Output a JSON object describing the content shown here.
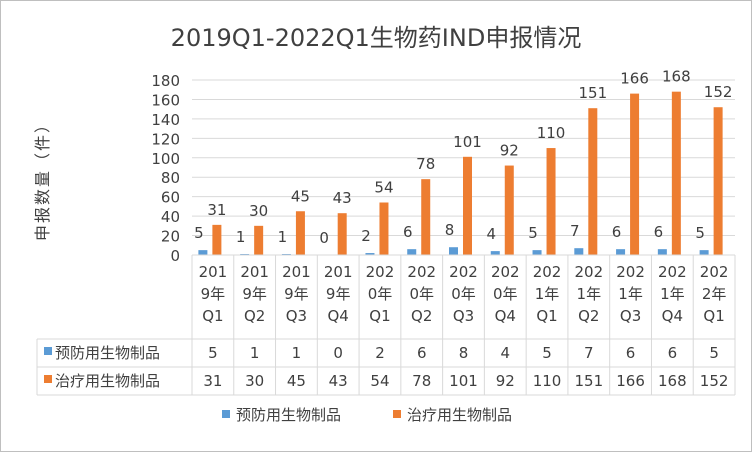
{
  "chart_data": {
    "type": "bar",
    "title": "2019Q1-2022Q1生物药IND申报情况",
    "xlabel": "",
    "ylabel": "申报数量（件）",
    "ylim": [
      0,
      180
    ],
    "yticks": [
      "0",
      "20",
      "40",
      "60",
      "80",
      "100",
      "120",
      "140",
      "160",
      "180"
    ],
    "grid": true,
    "legend_position": "bottom",
    "data_table": true,
    "categories": [
      [
        "201",
        "9年",
        "Q1"
      ],
      [
        "201",
        "9年",
        "Q2"
      ],
      [
        "201",
        "9年",
        "Q3"
      ],
      [
        "201",
        "9年",
        "Q4"
      ],
      [
        "202",
        "0年",
        "Q1"
      ],
      [
        "202",
        "0年",
        "Q2"
      ],
      [
        "202",
        "0年",
        "Q3"
      ],
      [
        "202",
        "0年",
        "Q4"
      ],
      [
        "202",
        "1年",
        "Q1"
      ],
      [
        "202",
        "1年",
        "Q2"
      ],
      [
        "202",
        "1年",
        "Q3"
      ],
      [
        "202",
        "1年",
        "Q4"
      ],
      [
        "202",
        "2年",
        "Q1"
      ]
    ],
    "series": [
      {
        "name": "预防用生物制品",
        "color": "#5B9BD5",
        "values": [
          5,
          1,
          1,
          0,
          2,
          6,
          8,
          4,
          5,
          7,
          6,
          6,
          5
        ]
      },
      {
        "name": "治疗用生物制品",
        "color": "#ED7D31",
        "values": [
          31,
          30,
          45,
          43,
          54,
          78,
          101,
          92,
          110,
          151,
          166,
          168,
          152
        ]
      }
    ]
  },
  "colors": {
    "grid": "#D9D9D9",
    "border": "#BFBFBF",
    "text": "#404040"
  }
}
